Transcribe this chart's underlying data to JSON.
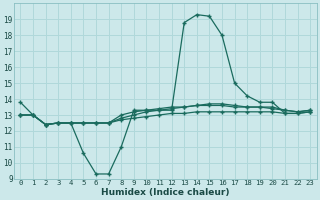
{
  "xlabel": "Humidex (Indice chaleur)",
  "bg_color": "#cce8ea",
  "grid_color": "#b0d8da",
  "line_color": "#1a6b5e",
  "xlim": [
    -0.5,
    23.5
  ],
  "ylim": [
    9,
    20
  ],
  "yticks": [
    9,
    10,
    11,
    12,
    13,
    14,
    15,
    16,
    17,
    18,
    19
  ],
  "xticks": [
    0,
    1,
    2,
    3,
    4,
    5,
    6,
    7,
    8,
    9,
    10,
    11,
    12,
    13,
    14,
    15,
    16,
    17,
    18,
    19,
    20,
    21,
    22,
    23
  ],
  "main_y": [
    13.8,
    13.0,
    12.4,
    12.5,
    12.5,
    10.6,
    9.3,
    9.3,
    11.0,
    13.3,
    13.3,
    13.3,
    13.3,
    18.8,
    19.3,
    19.2,
    18.0,
    15.0,
    14.2,
    13.8,
    13.8,
    13.1,
    13.1,
    13.2
  ],
  "line2_y": [
    13.0,
    13.0,
    12.4,
    12.5,
    12.5,
    12.5,
    12.5,
    12.5,
    12.7,
    12.8,
    12.9,
    13.0,
    13.1,
    13.1,
    13.2,
    13.2,
    13.2,
    13.2,
    13.2,
    13.2,
    13.2,
    13.1,
    13.1,
    13.2
  ],
  "line3_y": [
    13.0,
    13.0,
    12.4,
    12.5,
    12.5,
    12.5,
    12.5,
    12.5,
    12.8,
    13.0,
    13.2,
    13.3,
    13.4,
    13.5,
    13.6,
    13.7,
    13.7,
    13.6,
    13.5,
    13.5,
    13.4,
    13.3,
    13.2,
    13.3
  ],
  "line4_y": [
    13.0,
    13.0,
    12.4,
    12.5,
    12.5,
    12.5,
    12.5,
    12.5,
    13.0,
    13.2,
    13.3,
    13.4,
    13.5,
    13.5,
    13.6,
    13.6,
    13.6,
    13.5,
    13.5,
    13.5,
    13.5,
    13.3,
    13.2,
    13.3
  ]
}
